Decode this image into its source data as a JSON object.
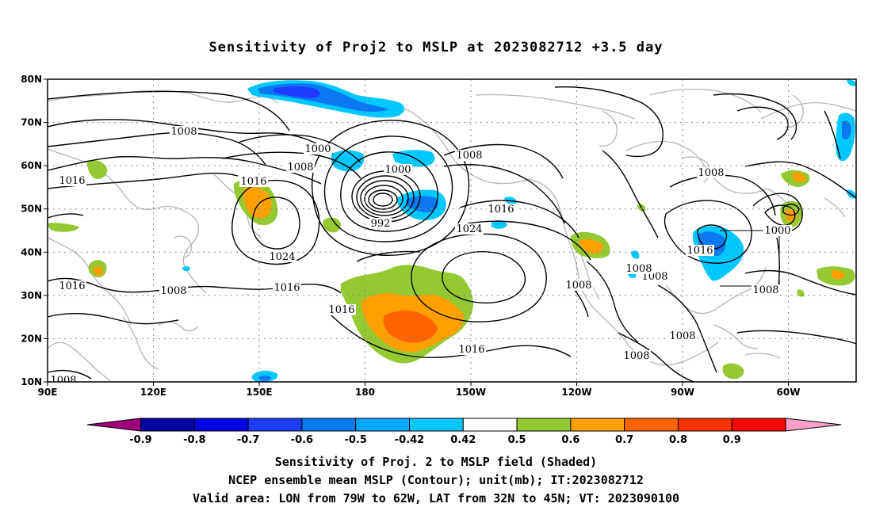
{
  "title": "Sensitivity of Proj2 to MSLP at 2023082712 +3.5 day",
  "map": {
    "lon_ticks": [
      "90E",
      "120E",
      "150E",
      "180",
      "150W",
      "120W",
      "90W",
      "60W"
    ],
    "lat_ticks": [
      "80N",
      "70N",
      "60N",
      "50N",
      "40N",
      "30N",
      "20N",
      "10N"
    ],
    "grid": "dotted",
    "coastline_color": "#b4b4b4",
    "isobar_labels": [
      {
        "text": "1008",
        "name": "isobar-label-1008-nw"
      },
      {
        "text": "1000",
        "name": "isobar-label-1000-n"
      },
      {
        "text": "1008",
        "name": "isobar-label-1008-n"
      },
      {
        "text": "1000",
        "name": "isobar-label-1000-low"
      },
      {
        "text": "1008",
        "name": "isobar-label-1008-ne-low"
      },
      {
        "text": "1016",
        "name": "isobar-label-1016-w"
      },
      {
        "text": "1016",
        "name": "isobar-label-1016-japan"
      },
      {
        "text": "992",
        "name": "isobar-label-992-low"
      },
      {
        "text": "1016",
        "name": "isobar-label-1016-alaska"
      },
      {
        "text": "1024",
        "name": "isobar-label-1024-pacific"
      },
      {
        "text": "1024",
        "name": "isobar-label-1024-west"
      },
      {
        "text": "1016",
        "name": "isobar-label-1016-mid"
      },
      {
        "text": "1016",
        "name": "isobar-label-1016-india"
      },
      {
        "text": "1008",
        "name": "isobar-label-1008-china"
      },
      {
        "text": "1016",
        "name": "isobar-label-1016-hawaii"
      },
      {
        "text": "1016",
        "name": "isobar-label-1016-south"
      },
      {
        "text": "1008",
        "name": "isobar-label-1008-baja"
      },
      {
        "text": "1008",
        "name": "isobar-label-1008-mexico-a"
      },
      {
        "text": "1008",
        "name": "isobar-label-1008-mexico-b"
      },
      {
        "text": "1016",
        "name": "isobar-label-1016-us-east"
      },
      {
        "text": "1000",
        "name": "isobar-label-1000-atlantic"
      },
      {
        "text": "1008",
        "name": "isobar-label-1008-canada"
      },
      {
        "text": "1008",
        "name": "isobar-label-1008-atlantic-s"
      },
      {
        "text": "1008",
        "name": "isobar-label-1008-caribbean"
      },
      {
        "text": "1008",
        "name": "isobar-label-1008-central-am"
      },
      {
        "text": "1008",
        "name": "isobar-label-1008-sw"
      }
    ]
  },
  "colorbar": {
    "labels": [
      "-0.9",
      "-0.8",
      "-0.7",
      "-0.6",
      "-0.5",
      "-0.42",
      "0.42",
      "0.5",
      "0.6",
      "0.7",
      "0.8",
      "0.9"
    ],
    "colors": [
      "#a0007c",
      "#0000a0",
      "#0000e6",
      "#1e3cff",
      "#0a78f0",
      "#00a8ff",
      "#00c8ff",
      "#ffffff",
      "#96c832",
      "#ffa000",
      "#ff6400",
      "#ff3200",
      "#ff0000",
      "#ffa0c8"
    ]
  },
  "captions": {
    "line1": "Sensitivity of Proj. 2 to MSLP field (Shaded)",
    "line2": "NCEP ensemble mean MSLP (Contour); unit(mb); IT:2023082712",
    "line3": "Valid area: LON from 79W to 62W, LAT from 32N to 45N; VT: 2023090100"
  }
}
